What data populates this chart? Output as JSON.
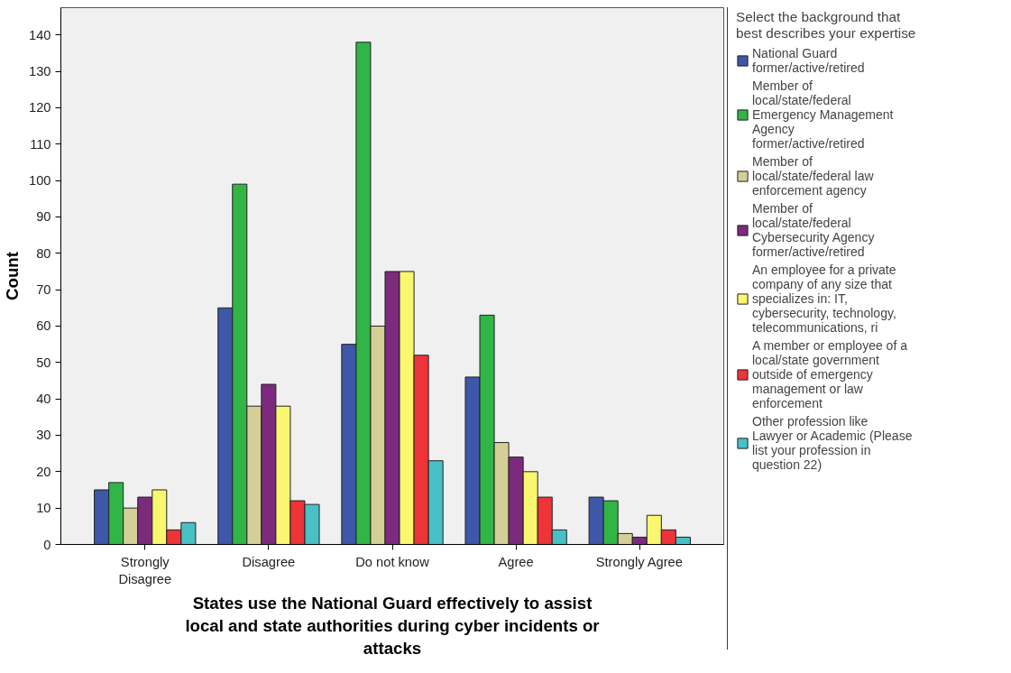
{
  "chart_data": {
    "type": "bar",
    "xlabel": "States use the National Guard effectively to assist local and state authorities during cyber incidents or attacks",
    "ylabel": "Count",
    "legend_title": "Select the background that best describes your expertise",
    "categories": [
      "Strongly Disagree",
      "Disagree",
      "Do not know",
      "Agree",
      "Strongly Agree"
    ],
    "ylim": [
      0,
      147.5
    ],
    "yticks": [
      0,
      10,
      20,
      30,
      40,
      50,
      60,
      70,
      80,
      90,
      100,
      110,
      120,
      130,
      140
    ],
    "grid": false,
    "legend": "right",
    "series": [
      {
        "name": "National Guard former/active/retired",
        "color": "#3f57a8",
        "values": [
          15,
          65,
          55,
          46,
          13
        ]
      },
      {
        "name": "Member of local/state/federal Emergency Management Agency former/active/retired",
        "color": "#30b546",
        "values": [
          17,
          99,
          138,
          63,
          12
        ]
      },
      {
        "name": "Member of local/state/federal law enforcement agency",
        "color": "#d4cf97",
        "values": [
          10,
          38,
          60,
          28,
          3
        ]
      },
      {
        "name": "Member of local/state/federal Cybersecurity Agency former/active/retired",
        "color": "#7c2a7d",
        "values": [
          13,
          44,
          75,
          24,
          2
        ]
      },
      {
        "name": "An employee for a private company of any size that specializes in: IT, cybersecurity, technology, telecommunications, ri",
        "color": "#f9f66f",
        "values": [
          15,
          38,
          75,
          20,
          8
        ]
      },
      {
        "name": "A member or employee of a local/state government outside of emergency management or law enforcement",
        "color": "#ee3339",
        "values": [
          4,
          12,
          52,
          13,
          4
        ]
      },
      {
        "name": "Other profession like Lawyer or Academic (Please list your profession in question 22)",
        "color": "#48c0c6",
        "values": [
          6,
          11,
          23,
          4,
          2
        ]
      }
    ]
  }
}
